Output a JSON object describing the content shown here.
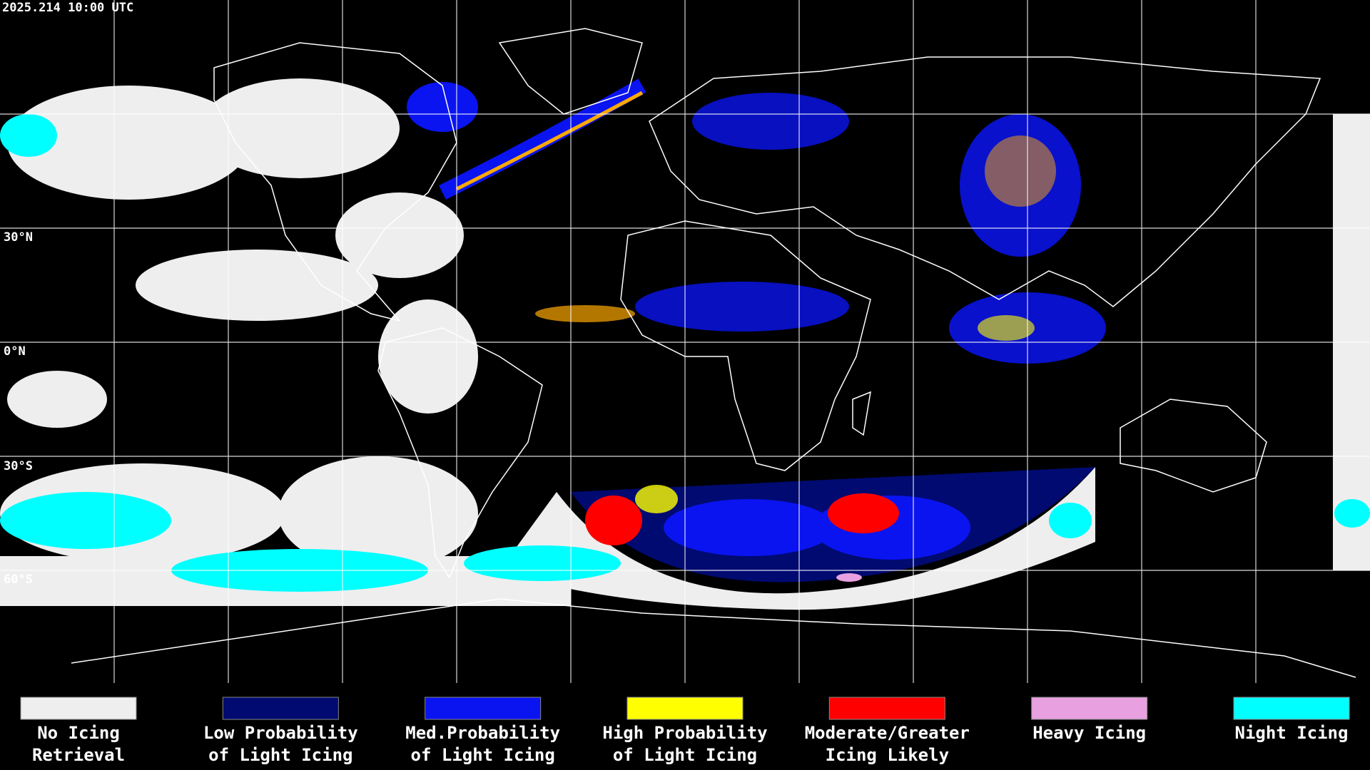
{
  "header": {
    "timestamp": "2025.214 10:00 UTC"
  },
  "map": {
    "latitude_labels": [
      "30°N",
      "0°N",
      "30°S",
      "60°S"
    ]
  },
  "legend": [
    {
      "label": [
        "No Icing",
        "Retrieval"
      ],
      "color": "#eeeeee"
    },
    {
      "label": [
        "Low Probability",
        "of Light Icing"
      ],
      "color": "#000a70"
    },
    {
      "label": [
        "Med.Probability",
        "of Light Icing"
      ],
      "color": "#0a14f0"
    },
    {
      "label": [
        "High Probability",
        "of Light Icing"
      ],
      "color": "#ffff00"
    },
    {
      "label": [
        "Moderate/Greater",
        "Icing Likely"
      ],
      "color": "#ff0000"
    },
    {
      "label": [
        "Heavy Icing",
        ""
      ],
      "color": "#e8a0e0"
    },
    {
      "label": [
        "Night Icing",
        ""
      ],
      "color": "#00ffff"
    }
  ]
}
